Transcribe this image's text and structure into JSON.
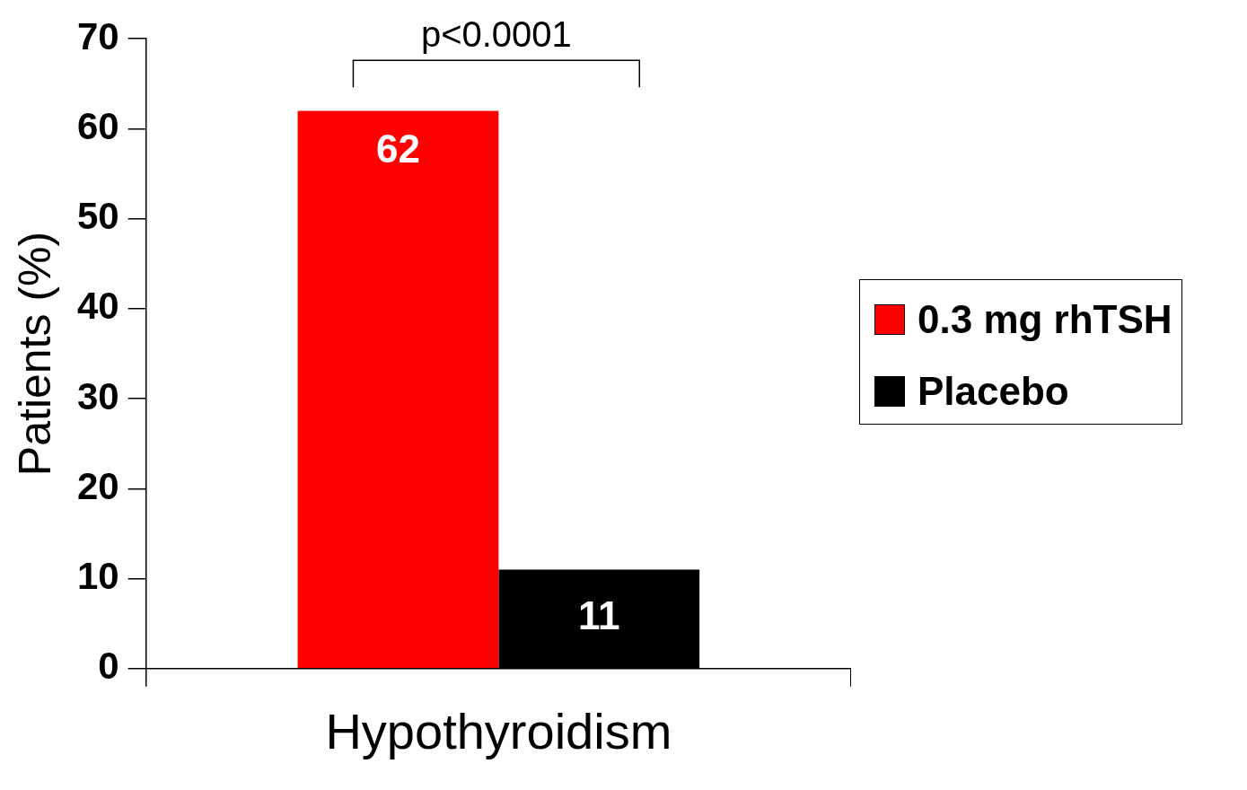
{
  "chart_data": {
    "type": "bar",
    "categories": [
      "Hypothyroidism"
    ],
    "ylabel": "Patients (%)",
    "series": [
      {
        "name": "0.3 mg rhTSH",
        "color": "#ff0000",
        "values": [
          62
        ]
      },
      {
        "name": "Placebo",
        "color": "#000000",
        "values": [
          11
        ]
      }
    ],
    "ylim": [
      0,
      70
    ],
    "yticks": [
      0,
      10,
      20,
      30,
      40,
      50,
      60,
      70
    ],
    "grid": false,
    "legend": "right",
    "data_labels": true,
    "annotations": [
      "p<0.0001"
    ]
  }
}
